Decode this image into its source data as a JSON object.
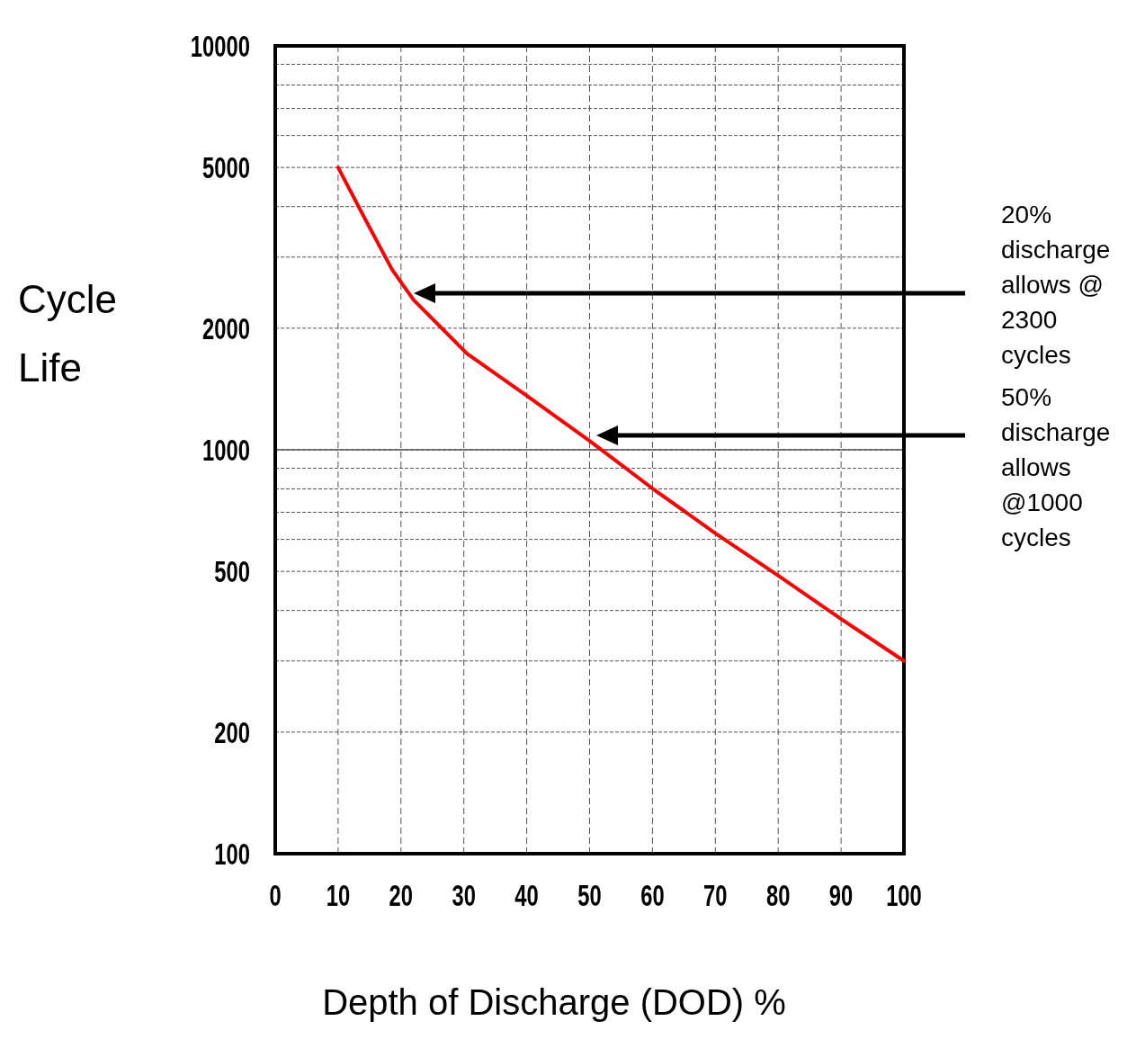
{
  "chart_data": {
    "type": "line",
    "xlabel": "Depth of Discharge (DOD) %",
    "ylabel": "Cycle Life",
    "x": [
      10,
      14,
      18.6,
      22,
      30.5,
      40,
      50,
      60,
      70,
      80,
      90,
      100
    ],
    "series": [
      {
        "color": "#ff0000",
        "values": [
          5000,
          3800,
          2790,
          2350,
          1730,
          1361,
          1052,
          802,
          621,
          488,
          381,
          300
        ]
      }
    ],
    "xlim": [
      0,
      100
    ],
    "xticks": [
      0,
      10,
      20,
      30,
      40,
      50,
      60,
      70,
      80,
      90,
      100
    ],
    "ylim": [
      100,
      10000
    ],
    "log": "y",
    "yticks": [
      100,
      200,
      {
        "value": 300,
        "label": null
      },
      {
        "value": 400,
        "label": null
      },
      500,
      {
        "value": 600,
        "label": null
      },
      {
        "value": 700,
        "label": null
      },
      {
        "value": 800,
        "label": null
      },
      {
        "value": 900,
        "label": null
      },
      1000,
      2000,
      {
        "value": 3000,
        "label": null
      },
      {
        "value": 4000,
        "label": null
      },
      5000,
      {
        "value": 6000,
        "label": null
      },
      {
        "value": 7000,
        "label": null
      },
      {
        "value": 8000,
        "label": null
      },
      {
        "value": 9000,
        "label": null
      },
      10000
    ],
    "grid": true,
    "marker": "none",
    "line_style": "solid",
    "ref_lines": [
      {
        "axis": "y",
        "value": 1000,
        "color": "#555555",
        "line_style": "solid"
      }
    ],
    "annotations": [
      "20% discharge allows @ 2300 cycles",
      "50% discharge allows @1000 cycles"
    ]
  }
}
